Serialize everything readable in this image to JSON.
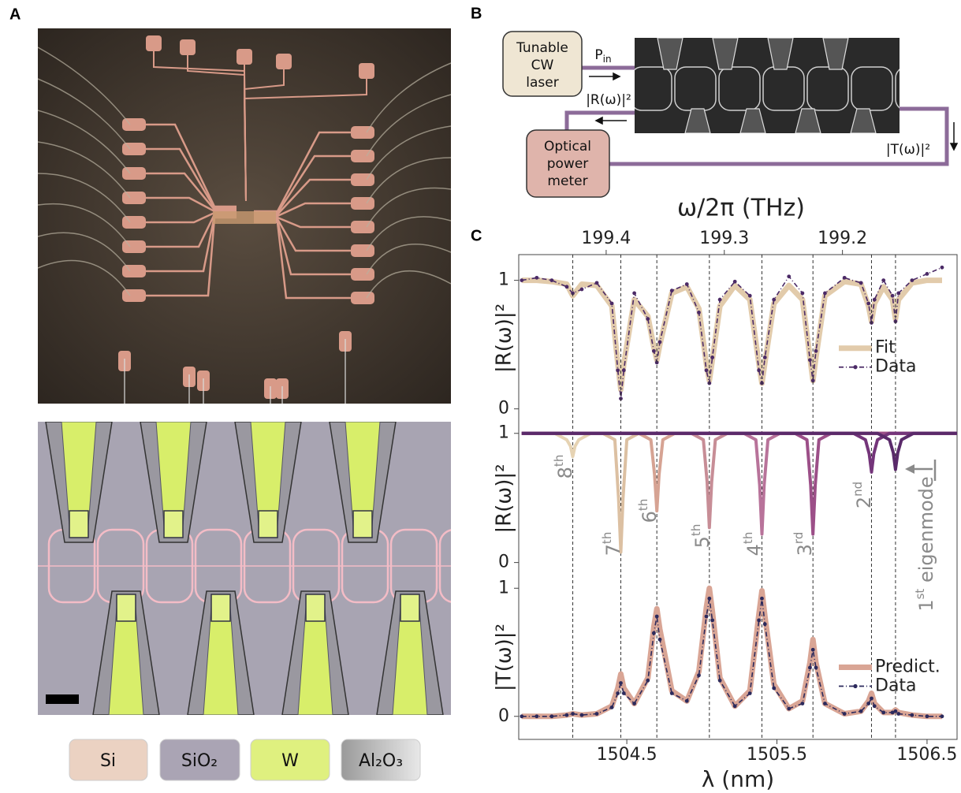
{
  "panels": {
    "a": "A",
    "b": "B",
    "c": "C"
  },
  "materials": [
    "Si",
    "SiO₂",
    "W",
    "Al₂O₃"
  ],
  "setup": {
    "laser": [
      "Tunable",
      "CW",
      "laser"
    ],
    "pin": {
      "base": "P",
      "sub": "in"
    },
    "reflection": "|R(ω)|²",
    "meter": [
      "Optical",
      "power",
      "meter"
    ],
    "transmission": "|T(ω)|²"
  },
  "chart_data": [
    {
      "type": "line",
      "ylabel": "|R(ω)|²",
      "x2label": "ω/2π (THz)",
      "x2lim": [
        199.474,
        199.103
      ],
      "x2ticks": [
        199.4,
        199.3,
        199.2
      ],
      "xlim": [
        1503.78,
        1506.7
      ],
      "ylim": [
        -0.1,
        1.2
      ],
      "yticks": [
        0,
        1
      ],
      "legend": "right",
      "x": [
        1503.8,
        1503.9,
        1504.0,
        1504.1,
        1504.14,
        1504.2,
        1504.3,
        1504.4,
        1504.44,
        1504.46,
        1504.48,
        1504.55,
        1504.64,
        1504.68,
        1504.7,
        1504.72,
        1504.8,
        1504.9,
        1504.98,
        1505.03,
        1505.05,
        1505.07,
        1505.12,
        1505.22,
        1505.32,
        1505.38,
        1505.4,
        1505.42,
        1505.48,
        1505.58,
        1505.67,
        1505.72,
        1505.74,
        1505.76,
        1505.82,
        1505.95,
        1506.06,
        1506.11,
        1506.13,
        1506.15,
        1506.21,
        1506.27,
        1506.29,
        1506.31,
        1506.4,
        1506.5,
        1506.6
      ],
      "series": [
        {
          "name": "Fit",
          "color": "#e2cbab",
          "line_style": "thick",
          "values": [
            1.0,
            1.0,
            0.99,
            0.97,
            0.88,
            0.97,
            0.96,
            0.8,
            0.35,
            0.15,
            0.35,
            0.85,
            0.72,
            0.48,
            0.38,
            0.5,
            0.9,
            0.95,
            0.78,
            0.35,
            0.22,
            0.38,
            0.8,
            0.96,
            0.85,
            0.35,
            0.2,
            0.36,
            0.82,
            0.96,
            0.85,
            0.4,
            0.22,
            0.4,
            0.88,
            0.99,
            0.97,
            0.8,
            0.68,
            0.82,
            0.95,
            0.85,
            0.7,
            0.85,
            0.98,
            1.0,
            1.0
          ]
        },
        {
          "name": "Data",
          "color": "#4b2a66",
          "line_style": "dashdot",
          "markers": true,
          "values": [
            1.0,
            1.02,
            1.0,
            0.95,
            0.9,
            0.93,
            0.98,
            0.82,
            0.3,
            0.08,
            0.3,
            0.9,
            0.7,
            0.45,
            0.36,
            0.52,
            0.92,
            0.97,
            0.75,
            0.3,
            0.2,
            0.4,
            0.85,
            0.99,
            0.88,
            0.3,
            0.2,
            0.4,
            0.85,
            1.03,
            0.9,
            0.38,
            0.22,
            0.45,
            0.9,
            1.02,
            0.98,
            0.82,
            0.67,
            0.85,
            1.0,
            0.88,
            0.68,
            0.9,
            1.0,
            1.05,
            1.1
          ]
        }
      ]
    },
    {
      "type": "line",
      "ylabel": "|R(ω)|²",
      "xlim": [
        1503.78,
        1506.7
      ],
      "ylim": [
        -0.1,
        1.09
      ],
      "yticks": [
        0,
        1
      ],
      "resonances": [
        1504.14,
        1504.46,
        1504.7,
        1505.05,
        1505.4,
        1505.74,
        1506.13,
        1506.29
      ],
      "series": [
        {
          "label": "8",
          "suffix": "th",
          "color": "#e6d3b3",
          "line_style": "solid",
          "x": [
            1503.8,
            1504.02,
            1504.1,
            1504.125,
            1504.14,
            1504.155,
            1504.18,
            1504.26,
            1506.7
          ],
          "values": [
            1,
            1,
            0.95,
            0.9,
            0.82,
            0.9,
            0.95,
            1,
            1
          ]
        },
        {
          "label": "7",
          "suffix": "th",
          "color": "#dcc0a2",
          "line_style": "solid",
          "x": [
            1503.8,
            1504.34,
            1504.42,
            1504.445,
            1504.46,
            1504.475,
            1504.5,
            1504.58,
            1506.7
          ],
          "values": [
            1,
            1,
            0.95,
            0.5,
            0.08,
            0.5,
            0.95,
            1,
            1
          ]
        },
        {
          "label": "6",
          "suffix": "th",
          "color": "#d6a393",
          "line_style": "solid",
          "x": [
            1503.8,
            1504.58,
            1504.66,
            1504.685,
            1504.7,
            1504.715,
            1504.74,
            1504.82,
            1506.7
          ],
          "values": [
            1,
            1,
            0.95,
            0.68,
            0.4,
            0.68,
            0.95,
            1,
            1
          ]
        },
        {
          "label": "5",
          "suffix": "th",
          "color": "#c78d96",
          "line_style": "solid",
          "x": [
            1503.8,
            1504.93,
            1505.01,
            1505.035,
            1505.05,
            1505.065,
            1505.09,
            1505.17,
            1506.7
          ],
          "values": [
            1,
            1,
            0.95,
            0.62,
            0.27,
            0.62,
            0.95,
            1,
            1
          ]
        },
        {
          "label": "4",
          "suffix": "th",
          "color": "#b8739a",
          "line_style": "solid",
          "x": [
            1503.8,
            1505.28,
            1505.36,
            1505.385,
            1505.4,
            1505.415,
            1505.44,
            1505.52,
            1506.7
          ],
          "values": [
            1,
            1,
            0.95,
            0.6,
            0.22,
            0.6,
            0.95,
            1,
            1
          ]
        },
        {
          "label": "3",
          "suffix": "rd",
          "color": "#9c4f88",
          "line_style": "solid",
          "x": [
            1503.8,
            1505.62,
            1505.7,
            1505.725,
            1505.74,
            1505.755,
            1505.78,
            1505.86,
            1506.7
          ],
          "values": [
            1,
            1,
            0.95,
            0.6,
            0.22,
            0.6,
            0.95,
            1,
            1
          ]
        },
        {
          "label": "2",
          "suffix": "nd",
          "color": "#74357a",
          "line_style": "solid",
          "x": [
            1503.8,
            1506.01,
            1506.09,
            1506.115,
            1506.13,
            1506.145,
            1506.17,
            1506.25,
            1506.7
          ],
          "values": [
            1,
            1,
            0.95,
            0.84,
            0.7,
            0.84,
            0.95,
            1,
            1
          ]
        },
        {
          "label": "1",
          "suffix": "st",
          "text": " eigenmode",
          "color": "#5a2a6a",
          "line_style": "solid",
          "x": [
            1503.8,
            1506.17,
            1506.25,
            1506.275,
            1506.29,
            1506.305,
            1506.33,
            1506.41,
            1506.7
          ],
          "values": [
            1,
            1,
            0.95,
            0.85,
            0.72,
            0.85,
            0.95,
            1,
            1
          ]
        }
      ]
    },
    {
      "type": "line",
      "ylabel": "|T(ω)|²",
      "xlabel": "λ (nm)",
      "xlim": [
        1503.78,
        1506.7
      ],
      "xticks": [
        1504.5,
        1505.5,
        1506.5
      ],
      "ylim": [
        -0.18,
        1.1
      ],
      "yticks": [
        0,
        1
      ],
      "legend": "right",
      "x": [
        1503.8,
        1503.9,
        1504.0,
        1504.1,
        1504.14,
        1504.2,
        1504.3,
        1504.4,
        1504.44,
        1504.46,
        1504.48,
        1504.55,
        1504.64,
        1504.68,
        1504.7,
        1504.72,
        1504.8,
        1504.9,
        1504.98,
        1505.03,
        1505.05,
        1505.07,
        1505.12,
        1505.22,
        1505.32,
        1505.38,
        1505.4,
        1505.42,
        1505.48,
        1505.58,
        1505.67,
        1505.72,
        1505.74,
        1505.76,
        1505.82,
        1505.95,
        1506.06,
        1506.11,
        1506.13,
        1506.15,
        1506.21,
        1506.27,
        1506.29,
        1506.31,
        1506.4,
        1506.5,
        1506.6
      ],
      "series": [
        {
          "name": "Predict.",
          "color": "#d9a595",
          "line_style": "thick",
          "values": [
            0,
            0,
            0,
            0.01,
            0.02,
            0.01,
            0.02,
            0.08,
            0.22,
            0.33,
            0.22,
            0.1,
            0.3,
            0.7,
            0.84,
            0.68,
            0.2,
            0.12,
            0.35,
            0.85,
            1.0,
            0.82,
            0.3,
            0.08,
            0.2,
            0.8,
            0.98,
            0.78,
            0.25,
            0.06,
            0.12,
            0.42,
            0.6,
            0.42,
            0.1,
            0.02,
            0.04,
            0.12,
            0.18,
            0.1,
            0.03,
            0.03,
            0.05,
            0.03,
            0.01,
            0,
            0
          ]
        },
        {
          "name": "Data",
          "color": "#2c2a5c",
          "line_style": "dashdot",
          "markers": true,
          "values": [
            0,
            0,
            0,
            0.01,
            0.02,
            0.01,
            0.02,
            0.07,
            0.18,
            0.26,
            0.18,
            0.1,
            0.28,
            0.65,
            0.78,
            0.6,
            0.18,
            0.12,
            0.32,
            0.78,
            0.92,
            0.75,
            0.28,
            0.08,
            0.18,
            0.75,
            0.92,
            0.72,
            0.22,
            0.06,
            0.1,
            0.38,
            0.52,
            0.38,
            0.1,
            0.02,
            0.04,
            0.1,
            0.14,
            0.08,
            0.03,
            0.03,
            0.04,
            0.02,
            0.01,
            0,
            0
          ]
        }
      ]
    }
  ]
}
